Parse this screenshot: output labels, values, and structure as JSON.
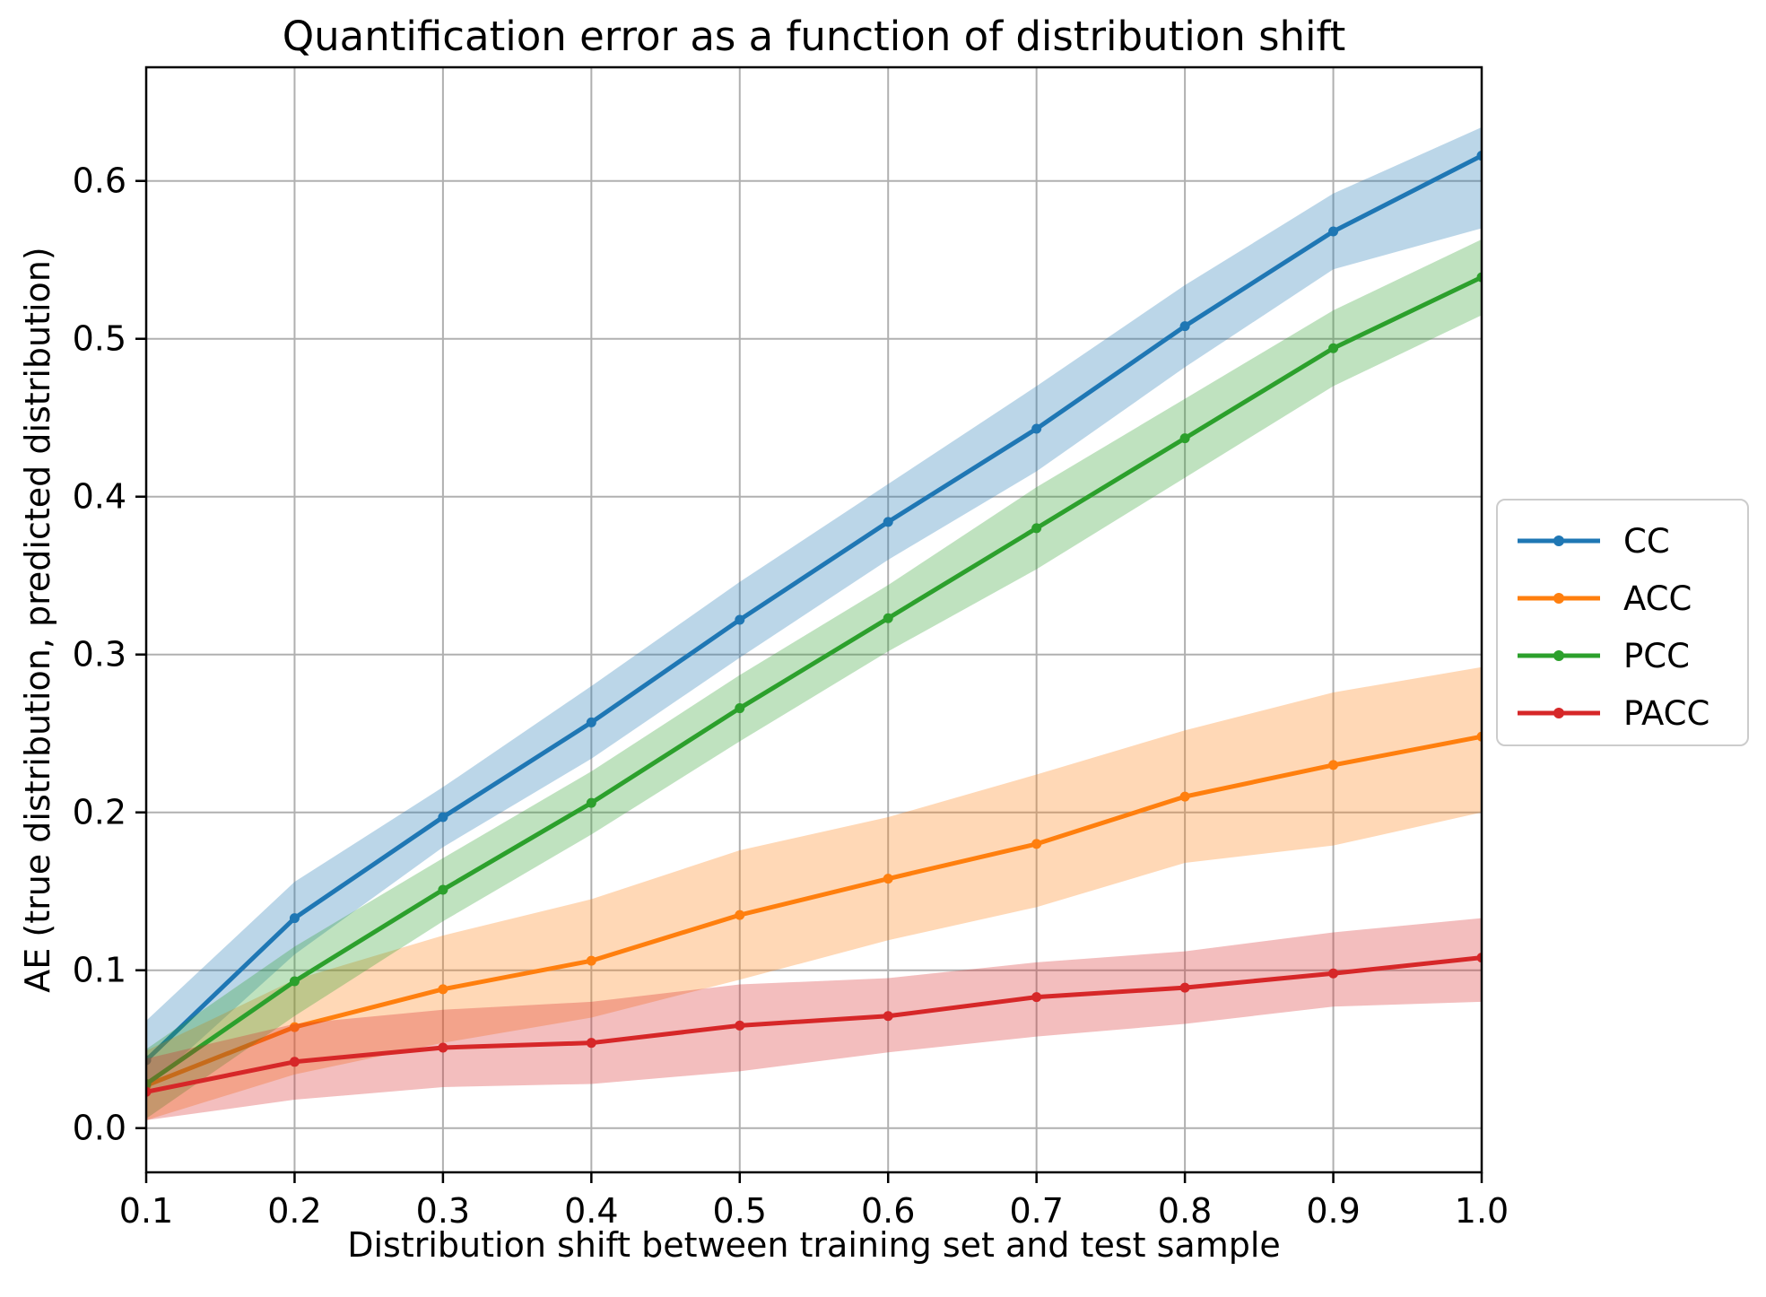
{
  "chart_data": {
    "type": "line",
    "title": "Quantification error as a function of distribution shift",
    "xlabel": "Distribution shift between training set and test sample",
    "ylabel": "AE (true distribution, predicted distribution)",
    "x": [
      0.1,
      0.2,
      0.3,
      0.4,
      0.5,
      0.6,
      0.7,
      0.8,
      0.9,
      1.0
    ],
    "x_tick_labels": [
      "0.1",
      "0.2",
      "0.3",
      "0.4",
      "0.5",
      "0.6",
      "0.7",
      "0.8",
      "0.9",
      "1.0"
    ],
    "y_ticks": [
      0.0,
      0.1,
      0.2,
      0.3,
      0.4,
      0.5,
      0.6
    ],
    "y_tick_labels": [
      "0.0",
      "0.1",
      "0.2",
      "0.3",
      "0.4",
      "0.5",
      "0.6"
    ],
    "xlim": [
      0.1,
      1.0
    ],
    "ylim": [
      -0.028,
      0.672
    ],
    "grid": true,
    "grid_color": "#b0b0b0",
    "axis_color": "#000000",
    "band_alpha": 0.3,
    "legend_position": "outside-center-right",
    "series": [
      {
        "name": "CC",
        "color": "#1f77b4",
        "values": [
          0.043,
          0.133,
          0.197,
          0.257,
          0.322,
          0.384,
          0.443,
          0.508,
          0.568,
          0.616
        ],
        "band_lower": [
          0.025,
          0.11,
          0.178,
          0.234,
          0.298,
          0.36,
          0.416,
          0.482,
          0.544,
          0.57
        ],
        "band_upper": [
          0.068,
          0.156,
          0.216,
          0.28,
          0.346,
          0.408,
          0.47,
          0.534,
          0.592,
          0.634
        ]
      },
      {
        "name": "ACC",
        "color": "#ff7f0e",
        "values": [
          0.027,
          0.064,
          0.088,
          0.106,
          0.135,
          0.158,
          0.18,
          0.21,
          0.23,
          0.248
        ],
        "band_lower": [
          0.005,
          0.034,
          0.054,
          0.07,
          0.094,
          0.119,
          0.14,
          0.168,
          0.179,
          0.2
        ],
        "band_upper": [
          0.049,
          0.094,
          0.122,
          0.145,
          0.176,
          0.197,
          0.224,
          0.252,
          0.276,
          0.292
        ]
      },
      {
        "name": "PCC",
        "color": "#2ca02c",
        "values": [
          0.028,
          0.093,
          0.151,
          0.206,
          0.266,
          0.323,
          0.38,
          0.437,
          0.494,
          0.539
        ],
        "band_lower": [
          0.006,
          0.071,
          0.131,
          0.186,
          0.245,
          0.302,
          0.354,
          0.412,
          0.47,
          0.515
        ],
        "band_upper": [
          0.05,
          0.115,
          0.171,
          0.226,
          0.287,
          0.344,
          0.406,
          0.462,
          0.518,
          0.563
        ]
      },
      {
        "name": "PACC",
        "color": "#d62728",
        "values": [
          0.023,
          0.042,
          0.051,
          0.054,
          0.065,
          0.071,
          0.083,
          0.089,
          0.098,
          0.108
        ],
        "band_lower": [
          0.005,
          0.018,
          0.026,
          0.028,
          0.036,
          0.048,
          0.058,
          0.066,
          0.077,
          0.08
        ],
        "band_upper": [
          0.044,
          0.066,
          0.075,
          0.08,
          0.091,
          0.095,
          0.105,
          0.112,
          0.124,
          0.133
        ]
      }
    ]
  }
}
